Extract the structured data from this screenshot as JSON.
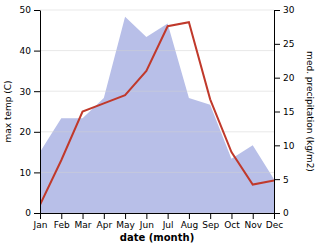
{
  "chart_data": {
    "type": "line",
    "xlabel": "date (month)",
    "ylabel": "max temp (C)",
    "y2label": "med. precipitation (kg/m2)",
    "categories": [
      "Jan",
      "Feb",
      "Mar",
      "Apr",
      "May",
      "Jun",
      "Jul",
      "Aug",
      "Sep",
      "Oct",
      "Nov",
      "Dec"
    ],
    "series": [
      {
        "type": "area",
        "axis": "y2",
        "color": "#b8bfe8",
        "values": [
          9,
          14,
          14,
          17,
          29,
          26,
          28,
          17,
          16,
          8,
          10,
          5
        ]
      },
      {
        "type": "line",
        "color": "#c0392b",
        "values": [
          2,
          13,
          25,
          27,
          29,
          35,
          46,
          47,
          28,
          15,
          7,
          8
        ]
      }
    ],
    "ylim": [
      0,
      50
    ],
    "yticks": [
      0,
      10,
      20,
      30,
      40,
      50
    ],
    "y2lim": [
      0,
      30
    ],
    "y2ticks": [
      0,
      5,
      10,
      15,
      20,
      25,
      30
    ],
    "grid": true
  }
}
